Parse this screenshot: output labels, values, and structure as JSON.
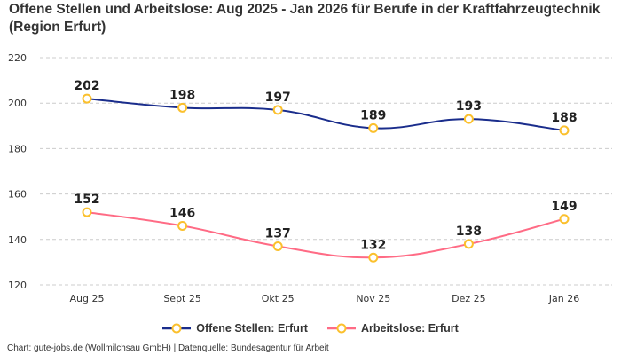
{
  "chart_data": {
    "type": "line",
    "title": "Offene Stellen und Arbeitslose: Aug 2025 - Jan 2026 für Berufe in der Kraftfahrzeugtechnik (Region Erfurt)",
    "categories": [
      "Aug 25",
      "Sept 25",
      "Okt 25",
      "Nov 25",
      "Dez 25",
      "Jan 26"
    ],
    "series": [
      {
        "name": "Offene Stellen: Erfurt",
        "values": [
          202,
          198,
          197,
          189,
          193,
          188
        ],
        "color": "#1a2d8c"
      },
      {
        "name": "Arbeitslose: Erfurt",
        "values": [
          152,
          146,
          137,
          132,
          138,
          149
        ],
        "color": "#ff6b85"
      }
    ],
    "marker_color": "#fbc02d",
    "ylim": [
      120,
      220
    ],
    "yticks": [
      "120",
      "140",
      "160",
      "180",
      "200",
      "220"
    ],
    "grid": true,
    "legend": "bottom",
    "xlabel": "",
    "ylabel": ""
  },
  "footer": "Chart: gute-jobs.de (Wollmilchsau GmbH) | Datenquelle: Bundesagentur für Arbeit"
}
